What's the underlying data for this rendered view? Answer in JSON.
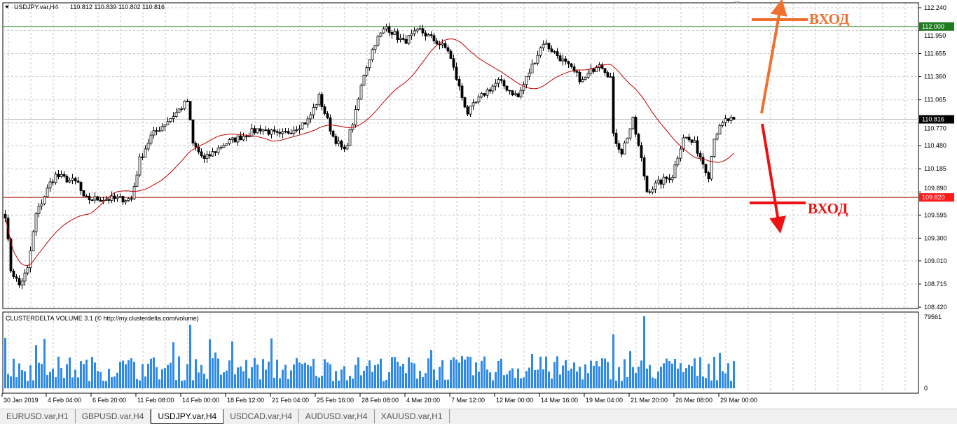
{
  "header": {
    "symbol": "USDJPY.var,H4",
    "ohlc": "110.812 110.839 110.802 110.816"
  },
  "price_axis": {
    "ticks": [
      "112.240",
      "111.950",
      "111.655",
      "111.360",
      "111.065",
      "110.770",
      "110.480",
      "110.185",
      "109.890",
      "109.595",
      "109.300",
      "109.010",
      "108.715",
      "108.420"
    ],
    "current_price": "110.816",
    "resistance_label": "112.000",
    "support_label": "109.820"
  },
  "levels": {
    "resistance": 112.0,
    "support": 109.82,
    "current": 110.816,
    "resistance_color": "#1e7b1e",
    "support_color": "#e00000"
  },
  "time_axis": {
    "labels": [
      "30 Jan 2019",
      "4 Feb 04:00",
      "6 Feb 20:00",
      "11 Feb 08:00",
      "14 Feb 00:00",
      "18 Feb 12:00",
      "21 Feb 04:00",
      "25 Feb 16:00",
      "28 Feb 08:00",
      "4 Mar 20:00",
      "7 Mar 12:00",
      "12 Mar 00:00",
      "14 Mar 16:00",
      "19 Mar 04:00",
      "21 Mar 20:00",
      "26 Mar 08:00",
      "29 Mar 00:00"
    ]
  },
  "indicator": {
    "title": "CLUSTERDELTA VOLUME 3.1 (© http://my.clusterdelta.com/volume)",
    "max_label": "79561",
    "zero_label": "0",
    "bar_color": "#2f8ae6"
  },
  "annotations": {
    "long_label": "ВХОД",
    "short_label": "ВХОД",
    "long_color": "#f07030",
    "short_color": "#ee1111"
  },
  "chart_data": {
    "type": "candlestick",
    "timeframe": "H4",
    "ylim": [
      108.42,
      112.24
    ],
    "price_path_by_bar": [
      [
        0,
        109.6
      ],
      [
        2,
        108.9
      ],
      [
        5,
        108.7
      ],
      [
        8,
        108.9
      ],
      [
        11,
        109.6
      ],
      [
        16,
        110.0
      ],
      [
        18,
        110.1
      ],
      [
        26,
        110.0
      ],
      [
        28,
        109.8
      ],
      [
        36,
        109.8
      ],
      [
        45,
        109.8
      ],
      [
        48,
        110.3
      ],
      [
        52,
        110.6
      ],
      [
        61,
        110.9
      ],
      [
        65,
        111.05
      ],
      [
        67,
        110.5
      ],
      [
        71,
        110.3
      ],
      [
        78,
        110.5
      ],
      [
        91,
        110.7
      ],
      [
        98,
        110.6
      ],
      [
        108,
        110.8
      ],
      [
        112,
        111.1
      ],
      [
        117,
        110.6
      ],
      [
        121,
        110.4
      ],
      [
        125,
        110.9
      ],
      [
        128,
        111.4
      ],
      [
        132,
        111.8
      ],
      [
        136,
        112.0
      ],
      [
        142,
        111.8
      ],
      [
        148,
        111.95
      ],
      [
        158,
        111.7
      ],
      [
        163,
        111.1
      ],
      [
        165,
        110.9
      ],
      [
        171,
        111.15
      ],
      [
        176,
        111.3
      ],
      [
        183,
        111.1
      ],
      [
        188,
        111.5
      ],
      [
        192,
        111.8
      ],
      [
        198,
        111.6
      ],
      [
        206,
        111.3
      ],
      [
        212,
        111.55
      ],
      [
        216,
        111.35
      ],
      [
        217,
        110.6
      ],
      [
        220,
        110.4
      ],
      [
        224,
        110.8
      ],
      [
        227,
        110.3
      ],
      [
        229,
        109.9
      ],
      [
        233,
        110.0
      ],
      [
        238,
        110.1
      ],
      [
        242,
        110.6
      ],
      [
        246,
        110.5
      ],
      [
        251,
        110.1
      ],
      [
        253,
        110.6
      ],
      [
        257,
        110.8
      ],
      [
        260,
        110.816
      ]
    ],
    "moving_average_color": "#c00000",
    "volume_max": 79561
  },
  "tabs": [
    {
      "label": "EURUSD.var,H1",
      "active": false
    },
    {
      "label": "GBPUSD.var,H4",
      "active": false
    },
    {
      "label": "USDJPY.var,H4",
      "active": true
    },
    {
      "label": "USDCAD.var,H4",
      "active": false
    },
    {
      "label": "AUDUSD.var,H4",
      "active": false
    },
    {
      "label": "XAUUSD.var,H1",
      "active": false
    }
  ]
}
